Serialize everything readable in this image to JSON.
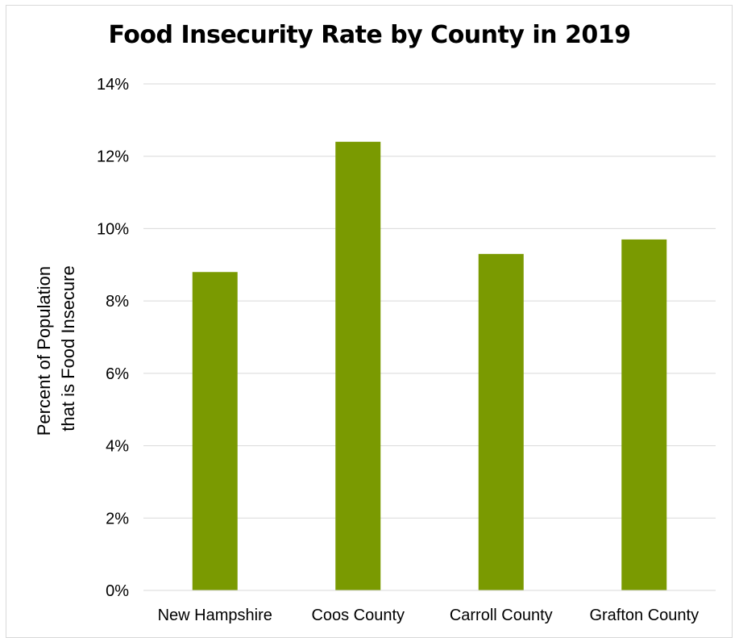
{
  "chart_data": {
    "type": "bar",
    "title": "Food Insecurity Rate by County in 2019",
    "ylabel_lines": [
      "Percent of Population",
      "that is Food Insecure"
    ],
    "xlabel": "",
    "categories": [
      "New Hampshire",
      "Coos County",
      "Carroll County",
      "Grafton County"
    ],
    "values": [
      8.8,
      12.4,
      9.3,
      9.7
    ],
    "ylim": [
      0,
      14
    ],
    "yticks": [
      0,
      2,
      4,
      6,
      8,
      10,
      12,
      14
    ],
    "ytick_labels": [
      "0%",
      "2%",
      "4%",
      "6%",
      "8%",
      "10%",
      "12%",
      "14%"
    ],
    "grid": true,
    "legend": "none",
    "bar_color": "#7a9a01",
    "grid_color": "#d9d9d9"
  }
}
